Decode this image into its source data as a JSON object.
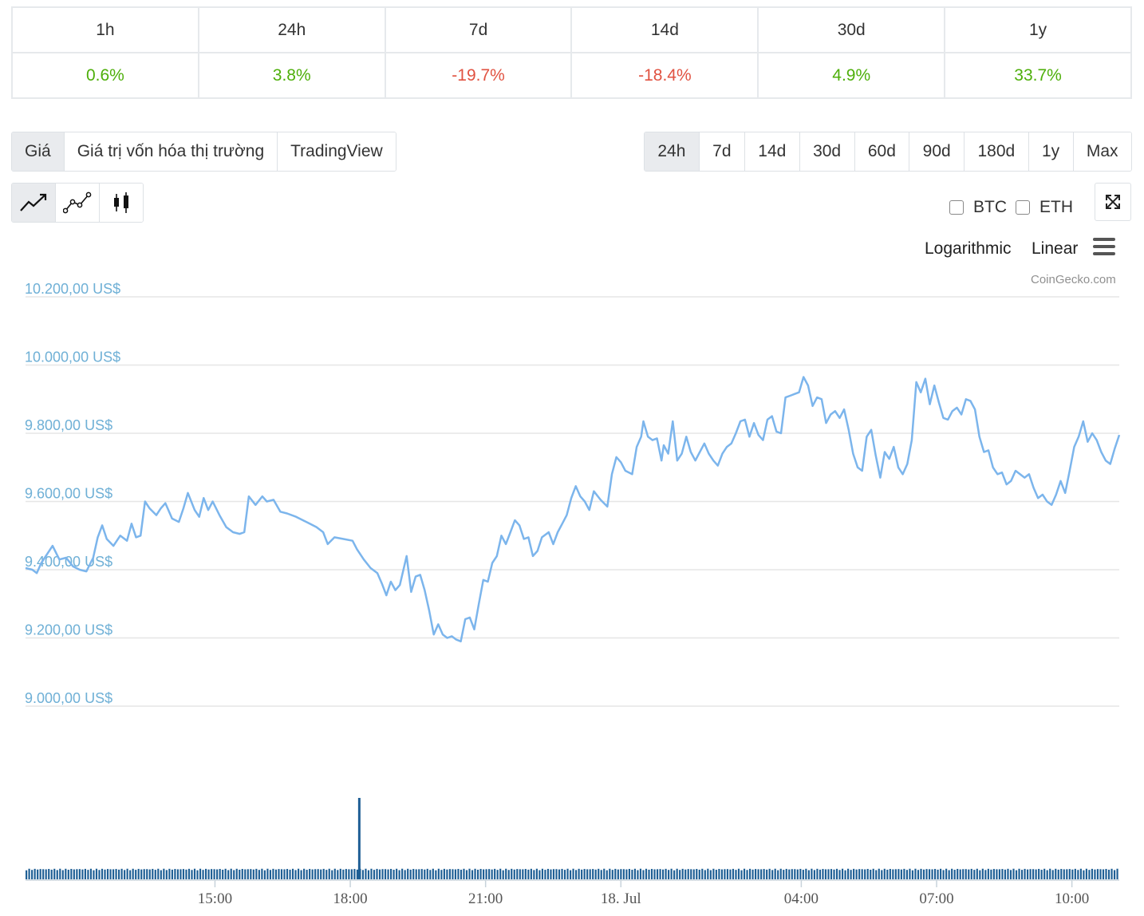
{
  "performance": {
    "periods": [
      "1h",
      "24h",
      "7d",
      "14d",
      "30d",
      "1y"
    ],
    "changes": [
      {
        "text": "0.6%",
        "direction": "up"
      },
      {
        "text": "3.8%",
        "direction": "up"
      },
      {
        "text": "-19.7%",
        "direction": "down"
      },
      {
        "text": "-18.4%",
        "direction": "down"
      },
      {
        "text": "4.9%",
        "direction": "up"
      },
      {
        "text": "33.7%",
        "direction": "up"
      }
    ]
  },
  "view_tabs": [
    {
      "label": "Giá",
      "active": true
    },
    {
      "label": "Giá trị vốn hóa thị trường",
      "active": false
    },
    {
      "label": "TradingView",
      "active": false
    }
  ],
  "range_tabs": [
    {
      "label": "24h",
      "active": true
    },
    {
      "label": "7d",
      "active": false
    },
    {
      "label": "14d",
      "active": false
    },
    {
      "label": "30d",
      "active": false
    },
    {
      "label": "60d",
      "active": false
    },
    {
      "label": "90d",
      "active": false
    },
    {
      "label": "180d",
      "active": false
    },
    {
      "label": "1y",
      "active": false
    },
    {
      "label": "Max",
      "active": false
    }
  ],
  "chart_types": [
    {
      "icon": "line-chart-icon",
      "active": true
    },
    {
      "icon": "point-line-chart-icon",
      "active": false
    },
    {
      "icon": "candlestick-icon",
      "active": false
    }
  ],
  "compare": {
    "btc_label": "BTC",
    "eth_label": "ETH"
  },
  "scale": {
    "log_label": "Logarithmic",
    "linear_label": "Linear"
  },
  "credit": "CoinGecko.com",
  "colors": {
    "line": "#7cb5ec",
    "axis_label": "#6fb0d6",
    "grid": "#e6e6e6",
    "volume": "#1f5f95",
    "up": "#4eaf0a",
    "down": "#e15241"
  },
  "chart_data": {
    "type": "line",
    "title": "",
    "y_tick_labels": [
      "10.200,00 US$",
      "10.000,00 US$",
      "9.800,00 US$",
      "9.600,00 US$",
      "9.400,00 US$",
      "9.200,00 US$",
      "9.000,00 US$"
    ],
    "y_ticks": [
      10200,
      10000,
      9800,
      9600,
      9400,
      9200,
      9000
    ],
    "ylim": [
      9000,
      10200
    ],
    "x_tick_labels": [
      "15:00",
      "18:00",
      "21:00",
      "18. Jul",
      "04:00",
      "07:00",
      "10:00"
    ],
    "x_tick_hours": [
      15,
      18,
      21,
      24,
      28,
      31,
      34
    ],
    "x_range_hours": [
      10.8,
      35.05
    ],
    "series": [
      {
        "name": "Price (USD)",
        "anchors": [
          [
            10.8,
            9405
          ],
          [
            10.95,
            9400
          ],
          [
            11.05,
            9390
          ],
          [
            11.15,
            9420
          ],
          [
            11.3,
            9450
          ],
          [
            11.4,
            9470
          ],
          [
            11.55,
            9430
          ],
          [
            11.7,
            9435
          ],
          [
            11.85,
            9410
          ],
          [
            12.0,
            9400
          ],
          [
            12.15,
            9395
          ],
          [
            12.3,
            9435
          ],
          [
            12.4,
            9495
          ],
          [
            12.5,
            9530
          ],
          [
            12.6,
            9490
          ],
          [
            12.75,
            9470
          ],
          [
            12.9,
            9500
          ],
          [
            13.05,
            9485
          ],
          [
            13.15,
            9535
          ],
          [
            13.25,
            9495
          ],
          [
            13.35,
            9500
          ],
          [
            13.45,
            9600
          ],
          [
            13.55,
            9580
          ],
          [
            13.7,
            9560
          ],
          [
            13.8,
            9580
          ],
          [
            13.9,
            9595
          ],
          [
            14.05,
            9550
          ],
          [
            14.2,
            9540
          ],
          [
            14.3,
            9580
          ],
          [
            14.4,
            9625
          ],
          [
            14.55,
            9575
          ],
          [
            14.65,
            9555
          ],
          [
            14.75,
            9610
          ],
          [
            14.85,
            9575
          ],
          [
            14.95,
            9600
          ],
          [
            15.1,
            9560
          ],
          [
            15.25,
            9525
          ],
          [
            15.4,
            9510
          ],
          [
            15.55,
            9505
          ],
          [
            15.65,
            9510
          ],
          [
            15.75,
            9615
          ],
          [
            15.9,
            9590
          ],
          [
            16.05,
            9615
          ],
          [
            16.15,
            9600
          ],
          [
            16.3,
            9605
          ],
          [
            16.45,
            9570
          ],
          [
            16.6,
            9565
          ],
          [
            16.8,
            9555
          ],
          [
            16.95,
            9545
          ],
          [
            17.1,
            9535
          ],
          [
            17.25,
            9525
          ],
          [
            17.4,
            9510
          ],
          [
            17.5,
            9475
          ],
          [
            17.65,
            9495
          ],
          [
            17.85,
            9490
          ],
          [
            18.05,
            9485
          ],
          [
            18.15,
            9460
          ],
          [
            18.3,
            9430
          ],
          [
            18.45,
            9405
          ],
          [
            18.6,
            9390
          ],
          [
            18.7,
            9360
          ],
          [
            18.8,
            9325
          ],
          [
            18.9,
            9365
          ],
          [
            19.0,
            9340
          ],
          [
            19.1,
            9355
          ],
          [
            19.25,
            9440
          ],
          [
            19.35,
            9335
          ],
          [
            19.45,
            9380
          ],
          [
            19.55,
            9385
          ],
          [
            19.65,
            9340
          ],
          [
            19.75,
            9280
          ],
          [
            19.85,
            9210
          ],
          [
            19.95,
            9240
          ],
          [
            20.05,
            9210
          ],
          [
            20.15,
            9200
          ],
          [
            20.25,
            9205
          ],
          [
            20.35,
            9195
          ],
          [
            20.45,
            9190
          ],
          [
            20.55,
            9255
          ],
          [
            20.65,
            9260
          ],
          [
            20.75,
            9225
          ],
          [
            20.85,
            9300
          ],
          [
            20.95,
            9370
          ],
          [
            21.05,
            9365
          ],
          [
            21.15,
            9420
          ],
          [
            21.25,
            9440
          ],
          [
            21.35,
            9500
          ],
          [
            21.45,
            9475
          ],
          [
            21.55,
            9510
          ],
          [
            21.65,
            9545
          ],
          [
            21.75,
            9530
          ],
          [
            21.85,
            9490
          ],
          [
            21.95,
            9495
          ],
          [
            22.05,
            9440
          ],
          [
            22.15,
            9455
          ],
          [
            22.25,
            9495
          ],
          [
            22.4,
            9510
          ],
          [
            22.5,
            9475
          ],
          [
            22.6,
            9510
          ],
          [
            22.7,
            9535
          ],
          [
            22.8,
            9560
          ],
          [
            22.9,
            9610
          ],
          [
            23.0,
            9645
          ],
          [
            23.1,
            9615
          ],
          [
            23.2,
            9600
          ],
          [
            23.3,
            9575
          ],
          [
            23.4,
            9630
          ],
          [
            23.55,
            9605
          ],
          [
            23.7,
            9585
          ],
          [
            23.8,
            9680
          ],
          [
            23.9,
            9730
          ],
          [
            24.0,
            9715
          ],
          [
            24.1,
            9690
          ],
          [
            24.25,
            9680
          ],
          [
            24.35,
            9760
          ],
          [
            24.45,
            9790
          ],
          [
            24.5,
            9835
          ],
          [
            24.6,
            9790
          ],
          [
            24.7,
            9780
          ],
          [
            24.8,
            9785
          ],
          [
            24.9,
            9720
          ],
          [
            24.95,
            9765
          ],
          [
            25.05,
            9740
          ],
          [
            25.15,
            9835
          ],
          [
            25.25,
            9720
          ],
          [
            25.35,
            9740
          ],
          [
            25.45,
            9790
          ],
          [
            25.55,
            9745
          ],
          [
            25.65,
            9720
          ],
          [
            25.75,
            9745
          ],
          [
            25.85,
            9770
          ],
          [
            25.95,
            9740
          ],
          [
            26.05,
            9720
          ],
          [
            26.15,
            9705
          ],
          [
            26.25,
            9740
          ],
          [
            26.35,
            9760
          ],
          [
            26.45,
            9770
          ],
          [
            26.55,
            9800
          ],
          [
            26.65,
            9835
          ],
          [
            26.75,
            9840
          ],
          [
            26.85,
            9790
          ],
          [
            26.95,
            9830
          ],
          [
            27.05,
            9795
          ],
          [
            27.15,
            9780
          ],
          [
            27.25,
            9840
          ],
          [
            27.35,
            9850
          ],
          [
            27.45,
            9805
          ],
          [
            27.55,
            9800
          ],
          [
            27.65,
            9905
          ],
          [
            27.75,
            9910
          ],
          [
            27.85,
            9915
          ],
          [
            27.95,
            9920
          ],
          [
            28.05,
            9965
          ],
          [
            28.15,
            9940
          ],
          [
            28.25,
            9880
          ],
          [
            28.35,
            9905
          ],
          [
            28.45,
            9900
          ],
          [
            28.55,
            9830
          ],
          [
            28.65,
            9855
          ],
          [
            28.75,
            9865
          ],
          [
            28.85,
            9845
          ],
          [
            28.95,
            9870
          ],
          [
            29.05,
            9810
          ],
          [
            29.15,
            9740
          ],
          [
            29.25,
            9700
          ],
          [
            29.35,
            9690
          ],
          [
            29.45,
            9790
          ],
          [
            29.55,
            9810
          ],
          [
            29.65,
            9735
          ],
          [
            29.75,
            9670
          ],
          [
            29.85,
            9745
          ],
          [
            29.95,
            9725
          ],
          [
            30.05,
            9760
          ],
          [
            30.15,
            9700
          ],
          [
            30.25,
            9680
          ],
          [
            30.35,
            9710
          ],
          [
            30.45,
            9780
          ],
          [
            30.55,
            9950
          ],
          [
            30.65,
            9920
          ],
          [
            30.75,
            9960
          ],
          [
            30.85,
            9885
          ],
          [
            30.95,
            9940
          ],
          [
            31.05,
            9890
          ],
          [
            31.15,
            9845
          ],
          [
            31.25,
            9840
          ],
          [
            31.35,
            9865
          ],
          [
            31.45,
            9875
          ],
          [
            31.55,
            9855
          ],
          [
            31.65,
            9900
          ],
          [
            31.75,
            9895
          ],
          [
            31.85,
            9870
          ],
          [
            31.95,
            9790
          ],
          [
            32.05,
            9745
          ],
          [
            32.15,
            9750
          ],
          [
            32.25,
            9700
          ],
          [
            32.35,
            9680
          ],
          [
            32.45,
            9685
          ],
          [
            32.55,
            9650
          ],
          [
            32.65,
            9660
          ],
          [
            32.75,
            9690
          ],
          [
            32.85,
            9680
          ],
          [
            32.95,
            9670
          ],
          [
            33.05,
            9680
          ],
          [
            33.15,
            9640
          ],
          [
            33.25,
            9610
          ],
          [
            33.35,
            9620
          ],
          [
            33.45,
            9600
          ],
          [
            33.55,
            9590
          ],
          [
            33.65,
            9620
          ],
          [
            33.75,
            9660
          ],
          [
            33.85,
            9625
          ],
          [
            33.95,
            9690
          ],
          [
            34.05,
            9760
          ],
          [
            34.15,
            9790
          ],
          [
            34.25,
            9835
          ],
          [
            34.35,
            9775
          ],
          [
            34.45,
            9800
          ],
          [
            34.55,
            9780
          ],
          [
            34.65,
            9745
          ],
          [
            34.75,
            9720
          ],
          [
            34.85,
            9710
          ],
          [
            34.95,
            9755
          ],
          [
            35.05,
            9795
          ]
        ]
      }
    ],
    "volume": {
      "baseline_level": 0.13,
      "spike": {
        "hour": 18.2,
        "level": 1.0
      }
    }
  }
}
